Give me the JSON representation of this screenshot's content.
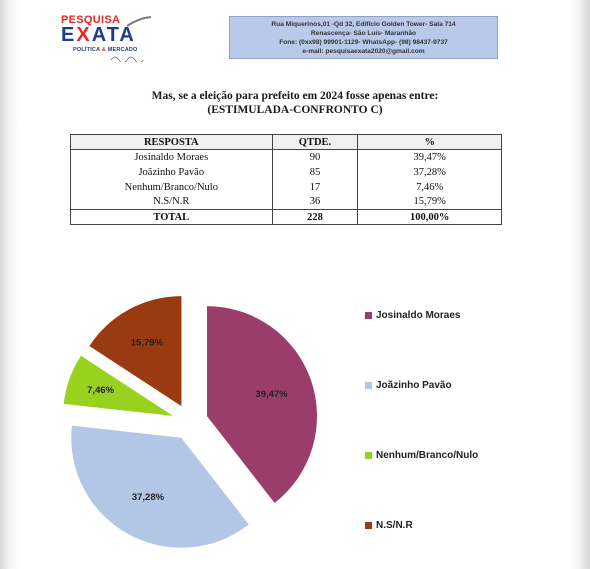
{
  "header": {
    "logo": {
      "pesquisa": "PESQUISA",
      "exata_e": "E",
      "exata_x": "X",
      "exata_rest": "ATA",
      "sub_left": "POLÍTICA",
      "sub_amp": "&",
      "sub_right": "MERCADO"
    },
    "contact": {
      "line1": "Rua Miquerinos,01 -Qd 32,  Edifício Golden Tower- Sala 714",
      "line2": "Renascença- São Luís- Maranhão",
      "line3": "Fone: (0xx98) 99901-1129- WhatsApp- (98) 98437-9737",
      "line4": "e-mail: pesquisaexata2020@gmail.com"
    }
  },
  "title": {
    "line1": "Mas, se a eleição para prefeito em 2024 fosse apenas entre:",
    "line2": "(ESTIMULADA-CONFRONTO C)"
  },
  "table": {
    "headers": [
      "RESPOSTA",
      "QTDE.",
      "%"
    ],
    "rows": [
      [
        "Josinaldo Moraes",
        "90",
        "39,47%"
      ],
      [
        "Joãzinho Pavão",
        "85",
        "37,28%"
      ],
      [
        "Nenhum/Branco/Nulo",
        "17",
        "7,46%"
      ],
      [
        "N.S/N.R",
        "36",
        "15,79%"
      ]
    ],
    "total": [
      "TOTAL",
      "228",
      "100,00%"
    ]
  },
  "chart_data": {
    "type": "pie",
    "categories": [
      "Josinaldo Moraes",
      "Joãzinho Pavão",
      "Nenhum/Branco/Nulo",
      "N.S/N.R"
    ],
    "values": [
      39.47,
      37.28,
      7.46,
      15.79
    ],
    "labels": [
      "39,47%",
      "37,28%",
      "7,46%",
      "15,79%"
    ],
    "colors": [
      "#9b3d6b",
      "#b2c6e6",
      "#99d11f",
      "#9a3a10"
    ],
    "exploded": true,
    "legend": "right"
  }
}
